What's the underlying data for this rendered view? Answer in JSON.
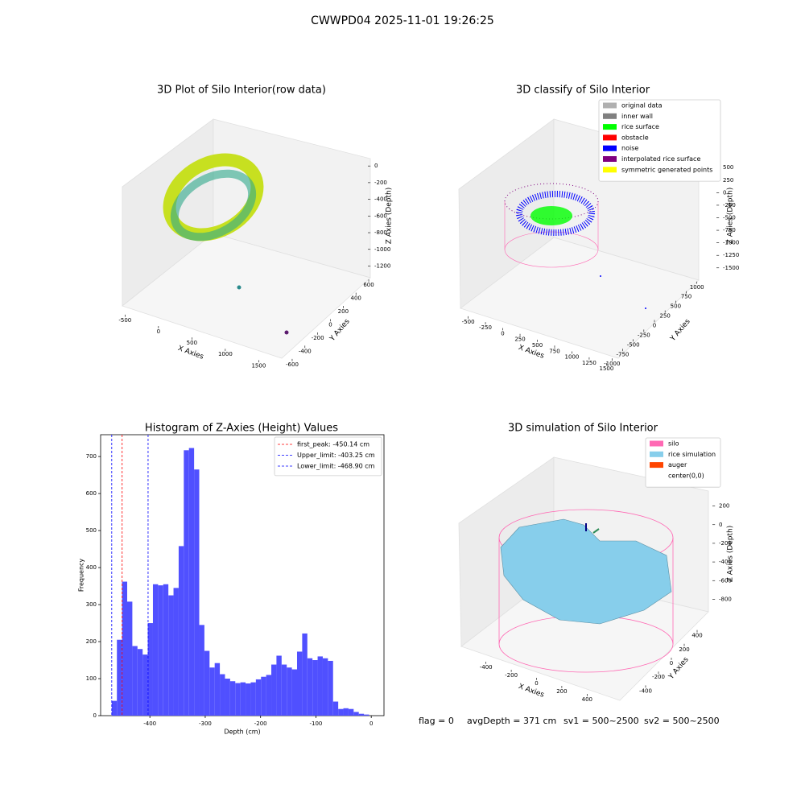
{
  "title": "CWWPD04 2025-11-01 19:26:25",
  "chart_data": [
    {
      "type": "scatter3d",
      "title": "3D Plot of Silo Interior(row data)",
      "xlabel": "X Axies",
      "ylabel": "Y Axies",
      "zlabel": "Z Axies (Depth)",
      "xlim": [
        -600,
        1700
      ],
      "xticks": [
        -500,
        0,
        500,
        1000,
        1500
      ],
      "ylim": [
        -650,
        650
      ],
      "yticks": [
        -600,
        -400,
        -200,
        0,
        200,
        400,
        600
      ],
      "zlim": [
        -1350,
        50
      ],
      "zticks": [
        0,
        -200,
        -400,
        -600,
        -800,
        -1000,
        -1200
      ]
    },
    {
      "type": "scatter3d",
      "title": "3D classify of Silo Interior",
      "xlabel": "X Axies",
      "ylabel": "Y Axies",
      "zlabel": "Z Axies (Depth)",
      "xlim": [
        -600,
        1600
      ],
      "xticks": [
        -500,
        -250,
        0,
        250,
        500,
        750,
        1000,
        1250,
        1500
      ],
      "ylim": [
        -1100,
        1100
      ],
      "yticks": [
        -1000,
        -750,
        -500,
        -250,
        0,
        250,
        500,
        750,
        1000
      ],
      "zlim": [
        -1600,
        600
      ],
      "zticks": [
        500,
        250,
        0,
        -250,
        -500,
        -750,
        -1000,
        -1250,
        -1500
      ],
      "legend": [
        {
          "name": "original data",
          "color": "#b0b0b0"
        },
        {
          "name": "inner wall",
          "color": "#808080"
        },
        {
          "name": "rice surface",
          "color": "#00ff00"
        },
        {
          "name": "obstacle",
          "color": "#ff0000"
        },
        {
          "name": "noise",
          "color": "#0000ff"
        },
        {
          "name": "interpolated rice surface",
          "color": "#800080"
        },
        {
          "name": "symmetric generated points",
          "color": "#ffff00"
        }
      ]
    },
    {
      "type": "histogram",
      "title": "Histogram of Z-Axies (Height) Values",
      "xlabel": "Depth (cm)",
      "ylabel": "Frequency",
      "color": "#5050ff",
      "bins": [
        -468.9,
        -459.6,
        -450.3,
        -441.0,
        -431.7,
        -422.4,
        -413.1,
        -403.8,
        -394.5,
        -385.2,
        -375.9,
        -366.6,
        -357.3,
        -348.0,
        -338.7,
        -329.4,
        -320.1,
        -310.8,
        -301.5,
        -292.2,
        -282.9,
        -273.6,
        -264.3,
        -255.0,
        -245.7,
        -236.4,
        -227.1,
        -217.8,
        -208.5,
        -199.2,
        -189.9,
        -180.6,
        -171.3,
        -162.0,
        -152.7,
        -143.4,
        -134.1,
        -124.8,
        -115.5,
        -106.2,
        -96.9,
        -87.6,
        -78.3,
        -69.0,
        -59.7,
        -50.4,
        -41.1,
        -31.8,
        -22.5,
        -13.2,
        -3.9
      ],
      "values": [
        40,
        205,
        362,
        308,
        188,
        180,
        165,
        250,
        355,
        352,
        355,
        325,
        345,
        458,
        717,
        723,
        665,
        245,
        175,
        130,
        142,
        112,
        100,
        93,
        88,
        90,
        87,
        90,
        98,
        105,
        110,
        138,
        162,
        138,
        130,
        125,
        173,
        222,
        155,
        150,
        160,
        155,
        148,
        38,
        18,
        20,
        18,
        10,
        5,
        3
      ],
      "xlim": [
        -489,
        23
      ],
      "xticks": [
        -400,
        -300,
        -200,
        -100,
        0
      ],
      "ylim": [
        0,
        759
      ],
      "yticks": [
        0,
        100,
        200,
        300,
        400,
        500,
        600,
        700
      ],
      "vlines": [
        {
          "name": "first_peak: -450.14 cm",
          "value": -450.14,
          "color": "#ff0000"
        },
        {
          "name": "Upper_limit: -403.25 cm",
          "value": -403.25,
          "color": "#0000ff"
        },
        {
          "name": "Lower_limit: -468.90 cm",
          "value": -468.9,
          "color": "#0000ff"
        }
      ]
    },
    {
      "type": "surface3d",
      "title": "3D simulation of Silo Interior",
      "xlabel": "X Axies",
      "ylabel": "Y Axies",
      "zlabel": "Z Axies (Depth)",
      "xlim": [
        -500,
        500
      ],
      "xticks": [
        -400,
        -200,
        0,
        200,
        400
      ],
      "ylim": [
        -500,
        500
      ],
      "yticks": [
        -400,
        -200,
        0,
        200,
        400
      ],
      "zlim": [
        -900,
        300
      ],
      "zticks": [
        200,
        0,
        -200,
        -400,
        -600,
        -800
      ],
      "legend": [
        {
          "name": "silo",
          "color": "#ff69b4"
        },
        {
          "name": "rice simulation",
          "color": "#87ceeb"
        },
        {
          "name": "auger",
          "color": "#ff4500"
        },
        {
          "name": "center(0,0)",
          "color": "#ffffff"
        }
      ]
    }
  ],
  "footer": [
    "flag = 0",
    "avgDepth = 371 cm",
    "sv1 = 500~2500",
    "sv2 = 500~2500"
  ]
}
